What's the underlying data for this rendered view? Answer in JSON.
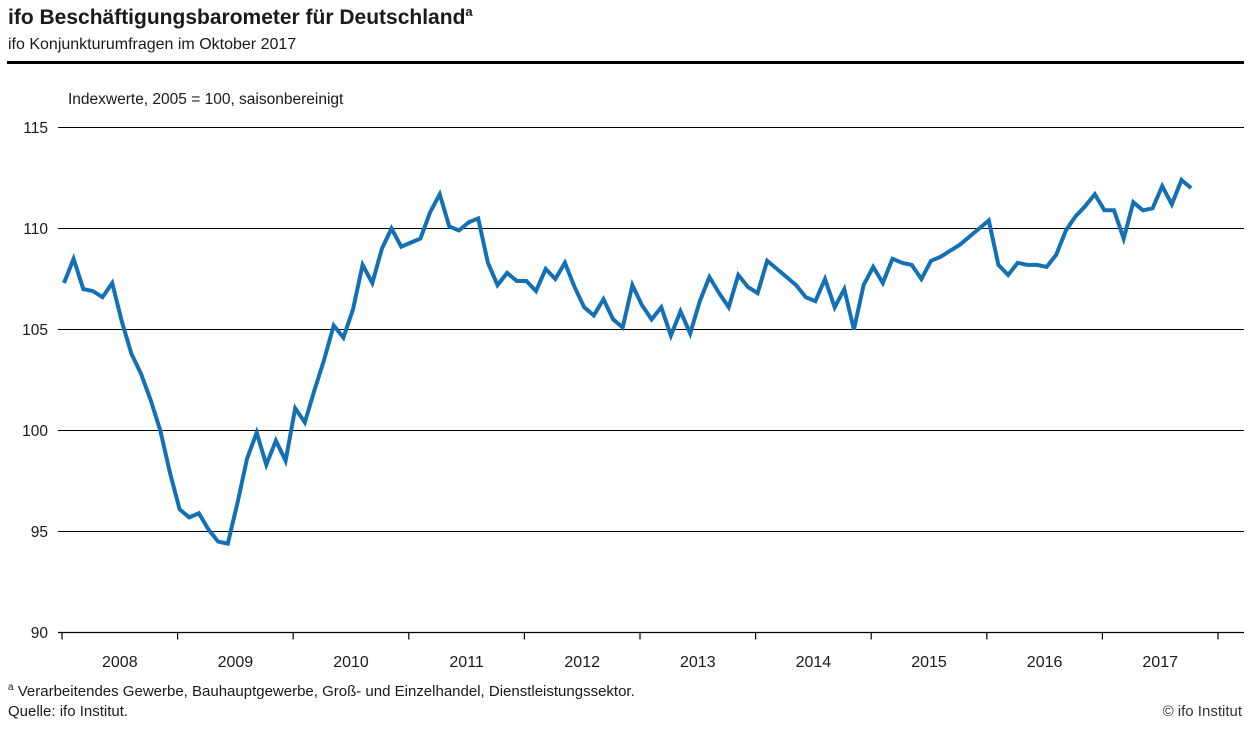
{
  "header": {
    "title": "ifo Beschäftigungsbarometer für Deutschland",
    "title_superscript": "a",
    "subtitle": "ifo Konjunkturumfragen im Oktober 2017"
  },
  "chart_data": {
    "type": "line",
    "annotation": "Indexwerte, 2005 = 100, saisonbereinigt",
    "x_tick_labels": [
      "2008",
      "2009",
      "2010",
      "2011",
      "2012",
      "2013",
      "2014",
      "2015",
      "2016",
      "2017"
    ],
    "y_ticks": [
      115,
      110,
      105,
      100,
      95,
      90
    ],
    "ylim": [
      90,
      115
    ],
    "grid": true,
    "legend": "none",
    "line_color": "#1470b4",
    "series": [
      {
        "name": "ifo Beschäftigungsbarometer",
        "frequency": "monthly",
        "start": "2008-01",
        "end": "2017-10",
        "values": [
          107.3,
          108.5,
          107.0,
          106.9,
          106.6,
          107.3,
          105.4,
          103.8,
          102.8,
          101.5,
          100.0,
          97.9,
          96.1,
          95.7,
          95.9,
          95.1,
          94.5,
          94.4,
          96.4,
          98.6,
          99.9,
          98.3,
          99.5,
          98.5,
          101.1,
          100.4,
          102.0,
          103.5,
          105.2,
          104.6,
          106.0,
          108.2,
          107.3,
          109.0,
          110.0,
          109.1,
          109.3,
          109.5,
          110.8,
          111.7,
          110.1,
          109.9,
          110.3,
          110.5,
          108.3,
          107.2,
          107.8,
          107.4,
          107.4,
          106.9,
          108.0,
          107.5,
          108.3,
          107.1,
          106.1,
          105.7,
          106.5,
          105.5,
          105.1,
          107.2,
          106.2,
          105.5,
          106.1,
          104.7,
          105.9,
          104.8,
          106.4,
          107.6,
          106.8,
          106.1,
          107.7,
          107.1,
          106.8,
          108.4,
          108.0,
          107.6,
          107.2,
          106.6,
          106.4,
          107.5,
          106.1,
          107.0,
          105.0,
          107.2,
          108.1,
          107.3,
          108.5,
          108.3,
          108.2,
          107.5,
          108.4,
          108.6,
          108.9,
          109.2,
          109.6,
          110.0,
          110.4,
          108.2,
          107.7,
          108.3,
          108.2,
          108.2,
          108.1,
          108.7,
          109.9,
          110.6,
          111.1,
          111.7,
          110.9,
          110.9,
          109.5,
          111.3,
          110.9,
          111.0,
          112.1,
          111.2,
          112.4,
          112.0
        ]
      }
    ]
  },
  "footer": {
    "footnote_marker": "a",
    "footnote": "Verarbeitendes Gewerbe, Bauhauptgewerbe, Groß- und Einzelhandel, Dienstleistungssektor.",
    "source": "Quelle: ifo Institut.",
    "copyright": "© ifo Institut"
  }
}
